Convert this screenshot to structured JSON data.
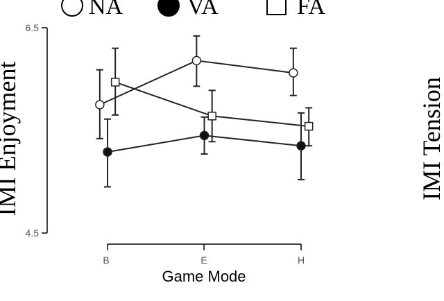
{
  "chart_data": {
    "type": "line",
    "title": "",
    "xlabel": "Game Mode",
    "ylabel": "IMI Enjoyment",
    "categories": [
      "B",
      "E",
      "H"
    ],
    "ylim": [
      4.5,
      6.5
    ],
    "yticks": [
      "6.5",
      "4.5"
    ],
    "grid": false,
    "legend_position": "top",
    "series": [
      {
        "name": "NA",
        "marker": "open-circle",
        "values": [
          5.75,
          6.18,
          6.06
        ],
        "err_low": [
          5.42,
          5.93,
          5.84
        ],
        "err_high": [
          6.09,
          6.42,
          6.3
        ]
      },
      {
        "name": "VA",
        "marker": "filled-circle",
        "values": [
          5.29,
          5.45,
          5.35
        ],
        "err_low": [
          4.95,
          5.27,
          5.02
        ],
        "err_high": [
          5.61,
          5.63,
          5.67
        ]
      },
      {
        "name": "FA",
        "marker": "open-square",
        "values": [
          5.97,
          5.64,
          5.54
        ],
        "err_low": [
          5.65,
          5.39,
          5.35
        ],
        "err_high": [
          6.3,
          5.89,
          5.72
        ]
      }
    ],
    "x_offsets": [
      -0.08,
      0,
      0.08
    ],
    "secondary_ylabel": "IMI Tension"
  }
}
